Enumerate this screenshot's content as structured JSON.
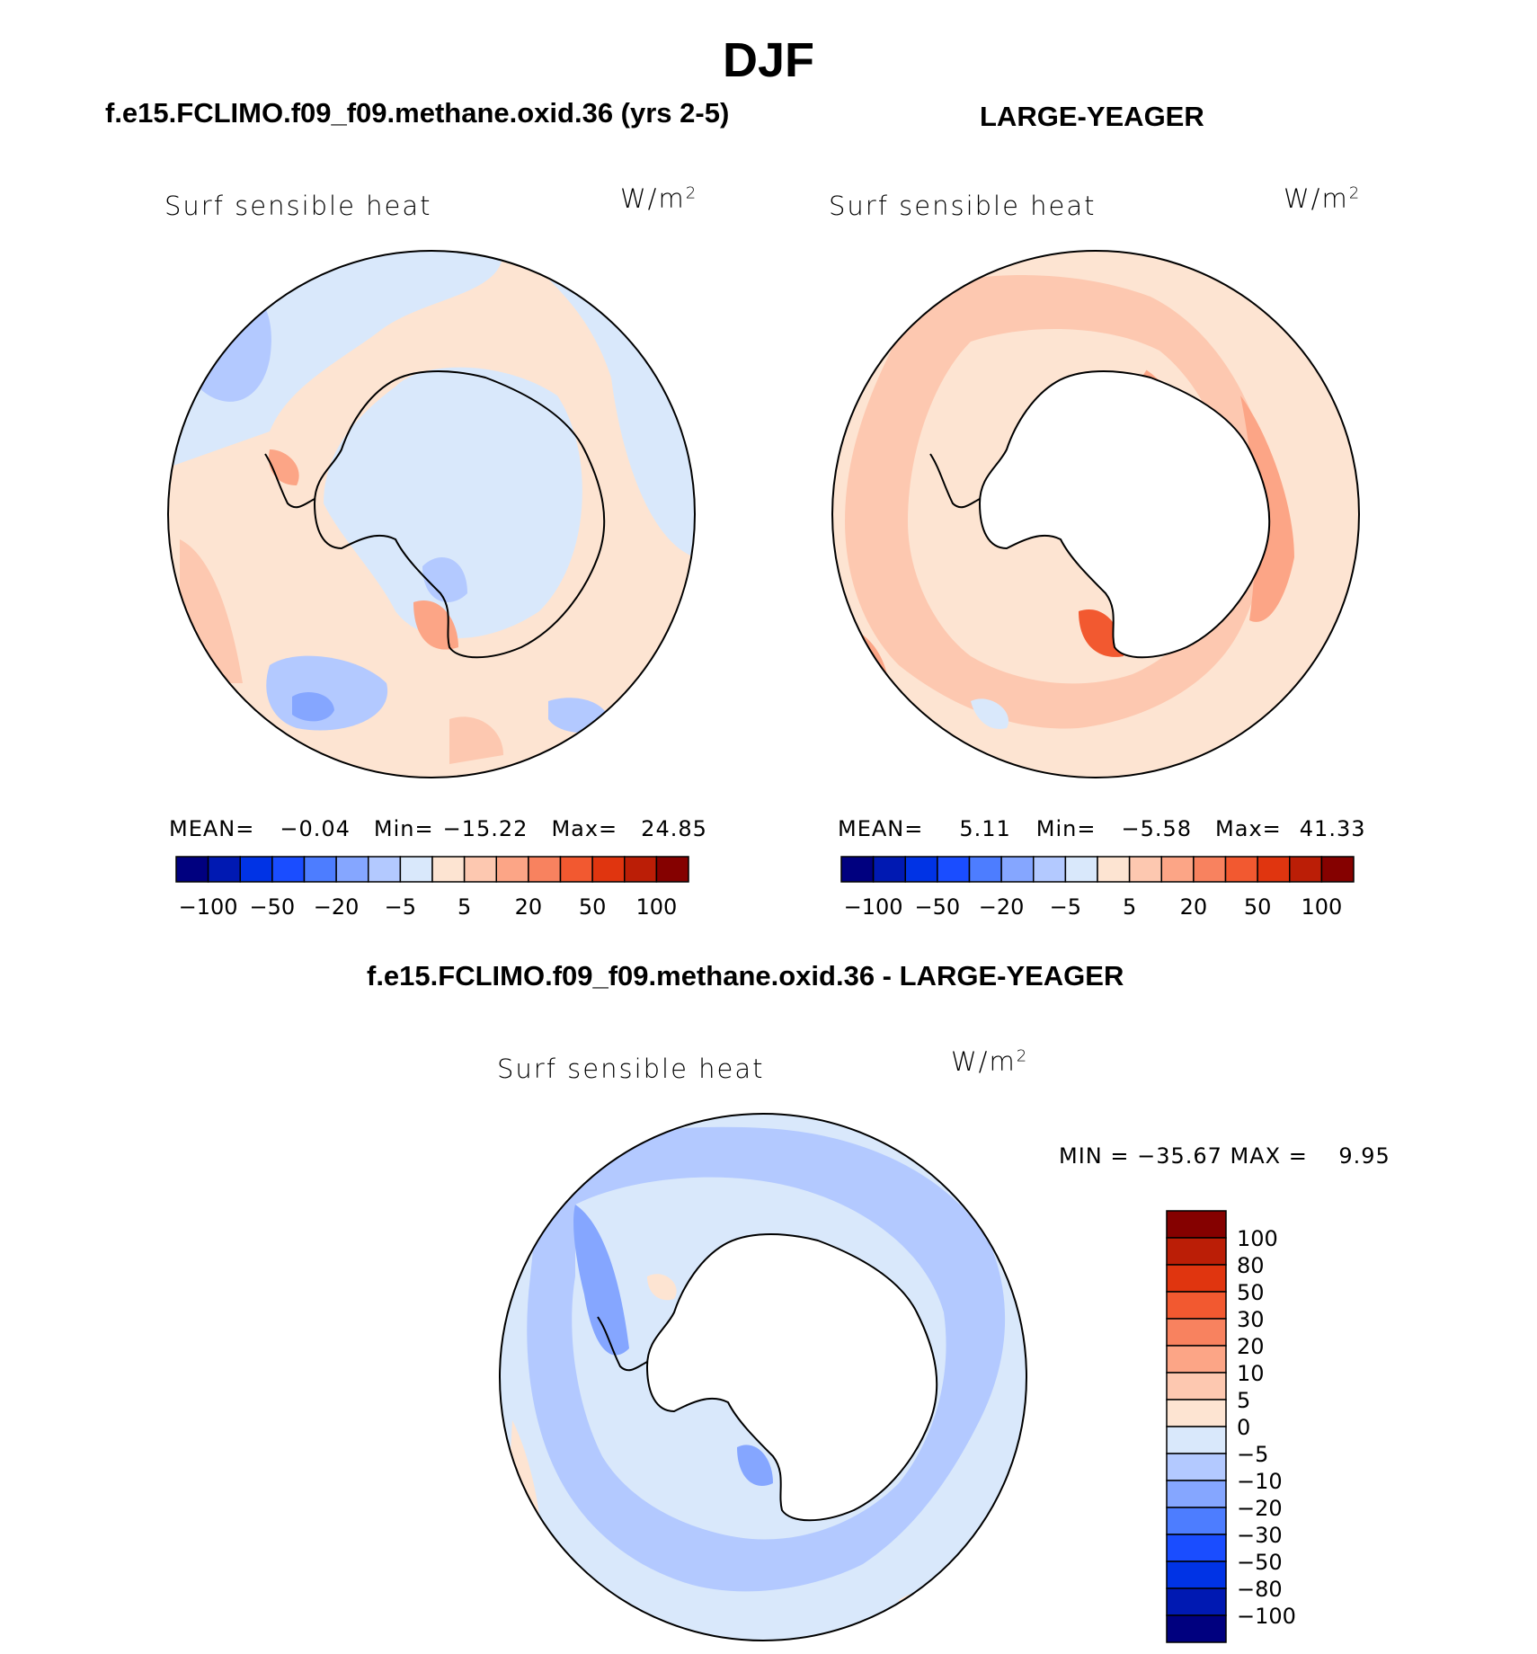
{
  "title": "DJF",
  "panels": {
    "left": {
      "case": "f.e15.FCLIMO.f09_f09.methane.oxid.36 (yrs 2-5)",
      "variable": "Surf sensible heat",
      "units": "W/m",
      "units_sup": "2",
      "stats": {
        "mean_label": "MEAN=",
        "mean": "−0.04",
        "min_label": "Min=",
        "min": "−15.22",
        "max_label": "Max=",
        "max": "24.85"
      }
    },
    "right": {
      "case": "LARGE-YEAGER",
      "variable": "Surf sensible heat",
      "units": "W/m",
      "units_sup": "2",
      "stats": {
        "mean_label": "MEAN=",
        "mean": "5.11",
        "min_label": "Min=",
        "min": "−5.58",
        "max_label": "Max=",
        "max": "41.33"
      }
    },
    "diff": {
      "case": "f.e15.FCLIMO.f09_f09.methane.oxid.36 - LARGE-YEAGER",
      "variable": "Surf sensible heat",
      "units": "W/m",
      "units_sup": "2",
      "stats_text": "MIN = −35.67 MAX =    9.95"
    }
  },
  "chart_data": [
    {
      "type": "heatmap",
      "projection": "south-polar-stereographic",
      "title": "f.e15.FCLIMO.f09_f09.methane.oxid.36 (yrs 2-5)",
      "variable": "Surf sensible heat",
      "units": "W/m2",
      "mean": -0.04,
      "min": -15.22,
      "max": 24.85,
      "contour_levels": [
        -100,
        -80,
        -50,
        -30,
        -20,
        -10,
        -5,
        0,
        5,
        10,
        20,
        30,
        50,
        80,
        100
      ],
      "colorbar_tick_labels": [
        "−100",
        "−50",
        "−20",
        "−5",
        "5",
        "20",
        "50",
        "100"
      ]
    },
    {
      "type": "heatmap",
      "projection": "south-polar-stereographic",
      "title": "LARGE-YEAGER",
      "variable": "Surf sensible heat",
      "units": "W/m2",
      "mean": 5.11,
      "min": -5.58,
      "max": 41.33,
      "contour_levels": [
        -100,
        -80,
        -50,
        -30,
        -20,
        -10,
        -5,
        0,
        5,
        10,
        20,
        30,
        50,
        80,
        100
      ],
      "colorbar_tick_labels": [
        "−100",
        "−50",
        "−20",
        "−5",
        "5",
        "20",
        "50",
        "100"
      ]
    },
    {
      "type": "heatmap",
      "projection": "south-polar-stereographic",
      "title": "f.e15.FCLIMO.f09_f09.methane.oxid.36 - LARGE-YEAGER",
      "variable": "Surf sensible heat",
      "units": "W/m2",
      "min": -35.67,
      "max": 9.95,
      "contour_levels": [
        -100,
        -80,
        -50,
        -30,
        -20,
        -10,
        -5,
        0,
        5,
        10,
        20,
        30,
        50,
        80,
        100
      ],
      "colorbar_tick_labels": [
        "100",
        "80",
        "50",
        "30",
        "20",
        "10",
        "5",
        "0",
        "−5",
        "−10",
        "−20",
        "−30",
        "−50",
        "−80",
        "−100"
      ]
    }
  ],
  "colors": {
    "palette": [
      "#00007f",
      "#0019b2",
      "#0033e5",
      "#1a4dff",
      "#4d7dff",
      "#85a6ff",
      "#b3c9ff",
      "#d9e8fb",
      "#fde4d2",
      "#fdc8b0",
      "#fca586",
      "#f8825f",
      "#f25930",
      "#e0350f",
      "#bb1e06",
      "#850100"
    ],
    "land": "#ffffff",
    "outline": "#000000"
  }
}
